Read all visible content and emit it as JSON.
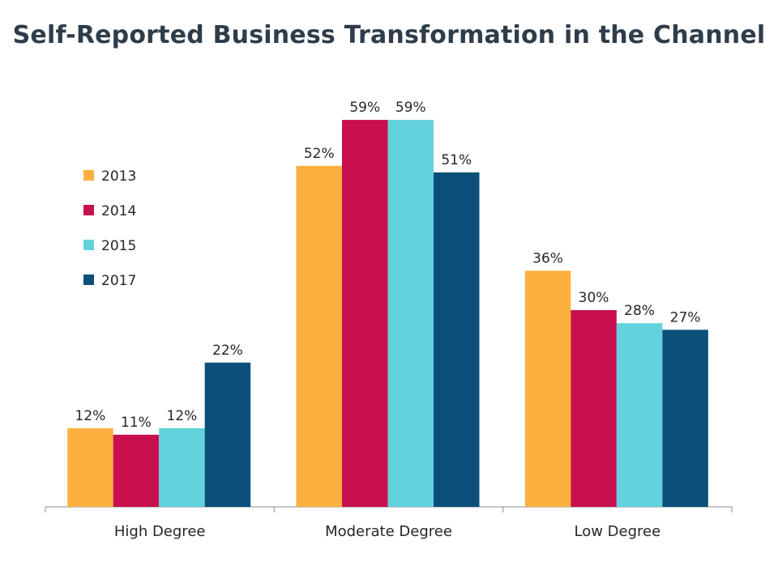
{
  "chart_data": {
    "type": "bar",
    "title": "Self-Reported Business Transformation in the Channel",
    "categories": [
      "High Degree",
      "Moderate Degree",
      "Low Degree"
    ],
    "series": [
      {
        "name": "2013",
        "color": "#fbb040",
        "values": [
          12,
          52,
          36
        ]
      },
      {
        "name": "2014",
        "color": "#c8104e",
        "values": [
          11,
          59,
          30
        ]
      },
      {
        "name": "2015",
        "color": "#62d2dc",
        "values": [
          12,
          59,
          28
        ]
      },
      {
        "name": "2017",
        "color": "#0b4f7a",
        "values": [
          22,
          51,
          27
        ]
      }
    ],
    "value_suffix": "%",
    "xlabel": "",
    "ylabel": "",
    "ylim": [
      0,
      60
    ],
    "grid": false,
    "legend_position": "left"
  }
}
